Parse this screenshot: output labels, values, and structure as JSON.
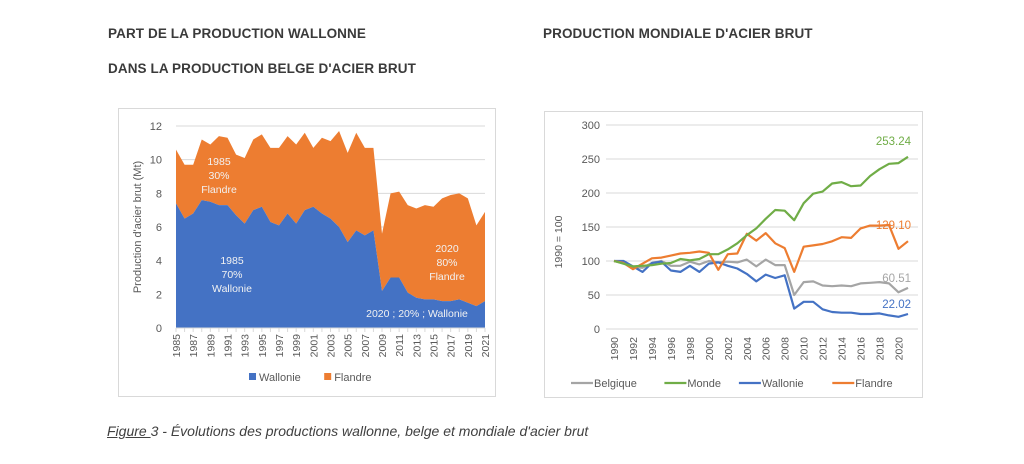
{
  "titles": {
    "left_line1": "PART DE LA PRODUCTION WALLONNE",
    "left_line2": "DANS LA PRODUCTION BELGE D'ACIER BRUT",
    "right": "PRODUCTION MONDIALE D'ACIER BRUT"
  },
  "caption": {
    "figure_label": "Figure ",
    "figure_number": "3",
    "text": " - Évolutions des productions wallonne, belge et mondiale d'acier brut"
  },
  "chart_data": [
    {
      "type": "area",
      "stacked": true,
      "title": "PART DE LA PRODUCTION WALLONNE DANS LA PRODUCTION BELGE D'ACIER BRUT",
      "xlabel": "",
      "ylabel": "Production d'acier brut (Mt)",
      "ylim": [
        0,
        12
      ],
      "yticks": [
        0,
        2,
        4,
        6,
        8,
        10,
        12
      ],
      "grid": true,
      "legend_position": "bottom",
      "x": [
        1985,
        1986,
        1987,
        1988,
        1989,
        1990,
        1991,
        1992,
        1993,
        1994,
        1995,
        1996,
        1997,
        1998,
        1999,
        2000,
        2001,
        2002,
        2003,
        2004,
        2005,
        2006,
        2007,
        2008,
        2009,
        2010,
        2011,
        2012,
        2013,
        2014,
        2015,
        2016,
        2017,
        2018,
        2019,
        2020,
        2021
      ],
      "xtick_labels": [
        "1985",
        "1987",
        "1989",
        "1991",
        "1993",
        "1995",
        "1997",
        "1999",
        "2001",
        "2003",
        "2005",
        "2007",
        "2009",
        "2011",
        "2013",
        "2015",
        "2017",
        "2019",
        "2021"
      ],
      "series": [
        {
          "name": "Wallonie",
          "color": "#4472c4",
          "values": [
            7.4,
            6.5,
            6.8,
            7.6,
            7.5,
            7.3,
            7.3,
            6.7,
            6.2,
            7.0,
            7.2,
            6.3,
            6.1,
            6.8,
            6.2,
            7.0,
            7.2,
            6.8,
            6.5,
            6.0,
            5.1,
            5.8,
            5.5,
            5.8,
            2.2,
            3.0,
            3.0,
            2.1,
            1.8,
            1.7,
            1.7,
            1.6,
            1.6,
            1.7,
            1.5,
            1.3,
            1.6
          ]
        },
        {
          "name": "Flandre",
          "color": "#ed7d31",
          "values": [
            3.2,
            3.2,
            2.9,
            3.6,
            3.4,
            4.1,
            4.0,
            3.6,
            3.9,
            4.2,
            4.3,
            4.4,
            4.6,
            4.6,
            4.7,
            4.6,
            3.5,
            4.5,
            4.6,
            5.7,
            5.3,
            5.8,
            5.2,
            4.9,
            3.4,
            5.0,
            5.1,
            5.2,
            5.3,
            5.6,
            5.5,
            6.1,
            6.3,
            6.3,
            6.2,
            4.8,
            5.3
          ]
        }
      ],
      "annotations": [
        {
          "id": "flandre-1985",
          "lines": [
            "1985",
            "30%",
            "Flandre"
          ],
          "color": "#f2f2f2"
        },
        {
          "id": "wallonie-1985",
          "lines": [
            "1985",
            "70%",
            "Wallonie"
          ],
          "color": "#f2f2f2"
        },
        {
          "id": "flandre-2020",
          "lines": [
            "2020",
            "80%",
            "Flandre"
          ],
          "color": "#f2f2f2"
        },
        {
          "id": "wallonie-2020",
          "lines": [
            "2020 ; 20% ; Wallonie"
          ],
          "color": "#f2f2f2"
        }
      ]
    },
    {
      "type": "line",
      "title": "PRODUCTION MONDIALE D'ACIER BRUT",
      "xlabel": "",
      "ylabel": "1990 = 100",
      "ylim": [
        0,
        300
      ],
      "yticks": [
        0,
        50,
        100,
        150,
        200,
        250,
        300
      ],
      "grid": true,
      "legend_position": "bottom",
      "x": [
        1990,
        1991,
        1992,
        1993,
        1994,
        1995,
        1996,
        1997,
        1998,
        1999,
        2000,
        2001,
        2002,
        2003,
        2004,
        2005,
        2006,
        2007,
        2008,
        2009,
        2010,
        2011,
        2012,
        2013,
        2014,
        2015,
        2016,
        2017,
        2018,
        2019,
        2020,
        2021
      ],
      "xtick_labels": [
        "1990",
        "1992",
        "1994",
        "1996",
        "1998",
        "2000",
        "2002",
        "2004",
        "2006",
        "2008",
        "2010",
        "2012",
        "2014",
        "2016",
        "2018",
        "2020"
      ],
      "series": [
        {
          "name": "Belgique",
          "color": "#a5a5a5",
          "values": [
            100,
            98,
            91,
            90,
            97,
            100,
            93,
            93,
            99,
            95,
            100,
            98,
            99,
            98,
            102,
            92,
            102,
            94,
            94,
            50,
            69,
            70,
            64,
            63,
            64,
            63,
            67,
            68,
            69,
            67,
            54,
            60.51
          ],
          "end_label": "60.51"
        },
        {
          "name": "Monde",
          "color": "#70ad47",
          "values": [
            100,
            96,
            92,
            93,
            94,
            96,
            97,
            103,
            101,
            103,
            110,
            110,
            117,
            126,
            138,
            148,
            162,
            175,
            174,
            160,
            185,
            199,
            202,
            214,
            216,
            210,
            211,
            225,
            235,
            243,
            244,
            253.24
          ],
          "end_label": "253.24"
        },
        {
          "name": "Wallonie",
          "color": "#4472c4",
          "values": [
            100,
            100,
            92,
            84,
            97,
            99,
            86,
            84,
            93,
            84,
            96,
            98,
            93,
            89,
            81,
            70,
            80,
            75,
            79,
            30,
            40,
            40,
            29,
            25,
            24,
            24,
            22,
            22,
            23,
            20,
            18,
            22.02
          ],
          "end_label": "22.02"
        },
        {
          "name": "Flandre",
          "color": "#ed7d31",
          "values": [
            100,
            97,
            88,
            96,
            104,
            105,
            108,
            111,
            112,
            114,
            112,
            87,
            110,
            111,
            140,
            130,
            141,
            126,
            119,
            84,
            121,
            123,
            125,
            129,
            135,
            134,
            148,
            152,
            152,
            153,
            118,
            129.1
          ],
          "end_label": "129.10"
        }
      ]
    }
  ]
}
